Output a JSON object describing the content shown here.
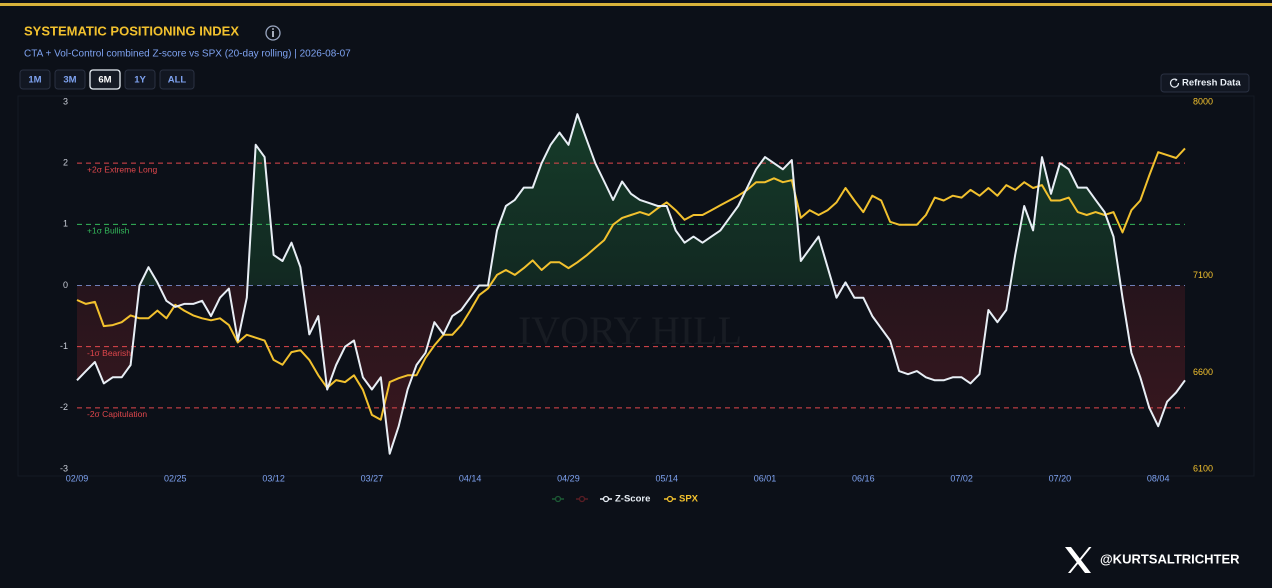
{
  "header": {
    "title": "SYSTEMATIC POSITIONING INDEX",
    "subtitle": "CTA + Vol-Control combined Z-score vs SPX (20-day rolling) | 2026-08-07"
  },
  "range_buttons": [
    "1M",
    "3M",
    "6M",
    "1Y",
    "ALL"
  ],
  "active_range": "6M",
  "refresh_label": "Refresh Data",
  "watermark": "IVORY HILL",
  "handle": "@KURTSALTRICHTER",
  "chart_data": {
    "type": "line",
    "categories": [
      "02/09",
      null,
      null,
      null,
      null,
      null,
      null,
      null,
      null,
      null,
      null,
      "02/25",
      null,
      null,
      null,
      null,
      null,
      null,
      null,
      null,
      null,
      null,
      "03/12",
      null,
      null,
      null,
      null,
      null,
      null,
      null,
      null,
      null,
      null,
      "03/27",
      null,
      null,
      null,
      null,
      null,
      null,
      null,
      null,
      null,
      null,
      "04/14",
      null,
      null,
      null,
      null,
      null,
      null,
      null,
      null,
      null,
      null,
      "04/29",
      null,
      null,
      null,
      null,
      null,
      null,
      null,
      null,
      null,
      null,
      "05/14",
      null,
      null,
      null,
      null,
      null,
      null,
      null,
      null,
      null,
      null,
      "06/01",
      null,
      null,
      null,
      null,
      null,
      null,
      null,
      null,
      null,
      null,
      "06/16",
      null,
      null,
      null,
      null,
      null,
      null,
      null,
      null,
      null,
      null,
      "07/02",
      null,
      null,
      null,
      null,
      null,
      null,
      null,
      null,
      null,
      null,
      "07/20",
      null,
      null,
      null,
      null,
      null,
      null,
      null,
      null,
      null,
      null,
      "08/04",
      null,
      null,
      null
    ],
    "series": [
      {
        "name": "Z-Score",
        "color": "#e8eef5",
        "axis": "y",
        "values": [
          -1.55,
          -1.4,
          -1.25,
          -1.6,
          -1.5,
          -1.5,
          -1.3,
          0.0,
          0.3,
          0.05,
          -0.25,
          -0.35,
          -0.3,
          -0.3,
          -0.25,
          -0.5,
          -0.2,
          -0.05,
          -0.9,
          -0.2,
          2.3,
          2.1,
          0.5,
          0.4,
          0.7,
          0.3,
          -0.8,
          -0.5,
          -1.7,
          -1.3,
          -1.0,
          -0.9,
          -1.5,
          -1.7,
          -1.5,
          -2.75,
          -2.3,
          -1.7,
          -1.3,
          -1.1,
          -0.6,
          -0.8,
          -0.5,
          -0.4,
          -0.2,
          0.0,
          0.0,
          0.9,
          1.3,
          1.4,
          1.6,
          1.6,
          2.0,
          2.3,
          2.5,
          2.3,
          2.8,
          2.4,
          2.0,
          1.7,
          1.4,
          1.7,
          1.5,
          1.4,
          1.35,
          1.3,
          1.3,
          0.9,
          0.7,
          0.8,
          0.7,
          0.8,
          0.9,
          1.1,
          1.3,
          1.6,
          1.9,
          2.1,
          2.0,
          1.9,
          2.05,
          0.4,
          0.6,
          0.8,
          0.3,
          -0.2,
          0.05,
          -0.2,
          -0.2,
          -0.5,
          -0.7,
          -0.9,
          -1.4,
          -1.45,
          -1.4,
          -1.5,
          -1.55,
          -1.55,
          -1.5,
          -1.5,
          -1.6,
          -1.45,
          -0.4,
          -0.6,
          -0.4,
          0.5,
          1.3,
          0.9,
          2.1,
          1.5,
          2.0,
          1.9,
          1.6,
          1.6,
          1.4,
          1.2,
          0.8,
          -0.2,
          -1.1,
          -1.5,
          -2.0,
          -2.3,
          -1.9,
          -1.75,
          -1.55
        ]
      },
      {
        "name": "SPX",
        "color": "#f2c12e",
        "axis": "y2",
        "values": [
          6975,
          6955,
          6965,
          6840,
          6845,
          6860,
          6895,
          6880,
          6880,
          6920,
          6880,
          6950,
          6920,
          6895,
          6880,
          6870,
          6880,
          6845,
          6755,
          6795,
          6780,
          6765,
          6665,
          6640,
          6705,
          6715,
          6665,
          6585,
          6520,
          6560,
          6550,
          6585,
          6510,
          6380,
          6355,
          6550,
          6570,
          6585,
          6585,
          6675,
          6740,
          6795,
          6795,
          6845,
          6920,
          7000,
          7035,
          7105,
          7130,
          7105,
          7140,
          7180,
          7130,
          7170,
          7170,
          7140,
          7170,
          7205,
          7245,
          7285,
          7365,
          7400,
          7415,
          7430,
          7415,
          7450,
          7480,
          7440,
          7390,
          7415,
          7415,
          7440,
          7465,
          7490,
          7515,
          7545,
          7585,
          7585,
          7605,
          7585,
          7595,
          7400,
          7440,
          7415,
          7440,
          7480,
          7555,
          7490,
          7430,
          7515,
          7490,
          7380,
          7365,
          7365,
          7365,
          7415,
          7505,
          7490,
          7515,
          7505,
          7545,
          7515,
          7555,
          7515,
          7570,
          7545,
          7585,
          7555,
          7570,
          7490,
          7490,
          7505,
          7430,
          7415,
          7430,
          7415,
          7430,
          7325,
          7440,
          7490,
          7620,
          7740,
          7725,
          7710,
          7760
        ]
      }
    ],
    "area_fill": {
      "above": "#1d5a35",
      "below": "#5a1d24"
    },
    "ylim": [
      -3,
      3
    ],
    "yticks": [
      -3,
      -2,
      -1,
      0,
      1,
      2,
      3
    ],
    "y2lim": [
      6100,
      8000
    ],
    "y2ticks": [
      6100,
      6600,
      7100,
      8000
    ],
    "reference_lines": [
      {
        "value": 2,
        "label": "+2σ Extreme Long",
        "color": "#e0474c"
      },
      {
        "value": 1,
        "label": "+1σ Bullish",
        "color": "#34b85a"
      },
      {
        "value": 0,
        "color": "#6f7fb8"
      },
      {
        "value": -1,
        "label": "-1σ Bearish",
        "color": "#e0474c"
      },
      {
        "value": -2,
        "label": "-2σ Capitulation",
        "color": "#e0474c"
      }
    ],
    "legend": "bottom"
  }
}
